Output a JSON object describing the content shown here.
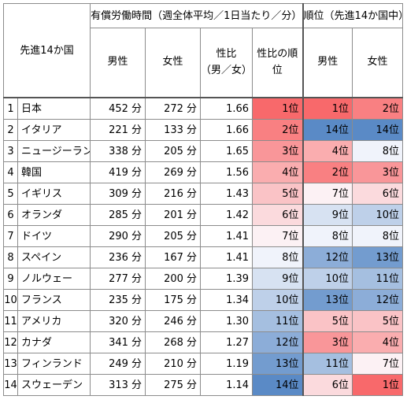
{
  "header": {
    "corner": "先進14か国",
    "group_work": "有償労働時間（週全体平均／1日当たり／分）",
    "group_rank": "順位（先進14か国中）",
    "col_male": "男性",
    "col_female": "女性",
    "col_ratio_l1": "性比",
    "col_ratio_l2": "（男／女）",
    "col_ratio_rank_l1": "性比の順",
    "col_ratio_rank_l2": "位",
    "col_rank_male": "男性",
    "col_rank_female": "女性"
  },
  "rows": [
    {
      "no": "1",
      "country": "日本",
      "male": "452 分",
      "female": "272 分",
      "ratio": "1.66",
      "ratio_rank": "1位",
      "rank_male": "1位",
      "rank_female": "2位",
      "rr": 1,
      "rm": 1,
      "rf": 2
    },
    {
      "no": "2",
      "country": "イタリア",
      "male": "221 分",
      "female": "133 分",
      "ratio": "1.66",
      "ratio_rank": "2位",
      "rank_male": "14位",
      "rank_female": "14位",
      "rr": 2,
      "rm": 14,
      "rf": 14
    },
    {
      "no": "3",
      "country": "ニュージーランド",
      "male": "338 分",
      "female": "205 分",
      "ratio": "1.65",
      "ratio_rank": "3位",
      "rank_male": "4位",
      "rank_female": "8位",
      "rr": 3,
      "rm": 4,
      "rf": 8
    },
    {
      "no": "4",
      "country": "韓国",
      "male": "419 分",
      "female": "269 分",
      "ratio": "1.56",
      "ratio_rank": "4位",
      "rank_male": "2位",
      "rank_female": "3位",
      "rr": 4,
      "rm": 2,
      "rf": 3
    },
    {
      "no": "5",
      "country": "イギリス",
      "male": "309 分",
      "female": "216 分",
      "ratio": "1.43",
      "ratio_rank": "5位",
      "rank_male": "7位",
      "rank_female": "6位",
      "rr": 5,
      "rm": 7,
      "rf": 6
    },
    {
      "no": "6",
      "country": "オランダ",
      "male": "285 分",
      "female": "201 分",
      "ratio": "1.42",
      "ratio_rank": "6位",
      "rank_male": "9位",
      "rank_female": "10位",
      "rr": 6,
      "rm": 9,
      "rf": 10
    },
    {
      "no": "7",
      "country": "ドイツ",
      "male": "290 分",
      "female": "205 分",
      "ratio": "1.41",
      "ratio_rank": "7位",
      "rank_male": "8位",
      "rank_female": "8位",
      "rr": 7,
      "rm": 8,
      "rf": 8
    },
    {
      "no": "8",
      "country": "スペイン",
      "male": "236 分",
      "female": "167 分",
      "ratio": "1.41",
      "ratio_rank": "8位",
      "rank_male": "12位",
      "rank_female": "13位",
      "rr": 8,
      "rm": 12,
      "rf": 13
    },
    {
      "no": "9",
      "country": "ノルウェー",
      "male": "277 分",
      "female": "200 分",
      "ratio": "1.39",
      "ratio_rank": "9位",
      "rank_male": "10位",
      "rank_female": "11位",
      "rr": 9,
      "rm": 10,
      "rf": 11
    },
    {
      "no": "10",
      "country": "フランス",
      "male": "235 分",
      "female": "175 分",
      "ratio": "1.34",
      "ratio_rank": "10位",
      "rank_male": "13位",
      "rank_female": "12位",
      "rr": 10,
      "rm": 13,
      "rf": 12
    },
    {
      "no": "11",
      "country": "アメリカ",
      "male": "320 分",
      "female": "246 分",
      "ratio": "1.30",
      "ratio_rank": "11位",
      "rank_male": "5位",
      "rank_female": "5位",
      "rr": 11,
      "rm": 5,
      "rf": 5
    },
    {
      "no": "12",
      "country": "カナダ",
      "male": "341 分",
      "female": "268 分",
      "ratio": "1.27",
      "ratio_rank": "12位",
      "rank_male": "3位",
      "rank_female": "4位",
      "rr": 12,
      "rm": 3,
      "rf": 4
    },
    {
      "no": "13",
      "country": "フィンランド",
      "male": "249 分",
      "female": "210 分",
      "ratio": "1.19",
      "ratio_rank": "13位",
      "rank_male": "11位",
      "rank_female": "7位",
      "rr": 13,
      "rm": 11,
      "rf": 7
    },
    {
      "no": "14",
      "country": "スウェーデン",
      "male": "313 分",
      "female": "275 分",
      "ratio": "1.14",
      "ratio_rank": "14位",
      "rank_male": "6位",
      "rank_female": "1位",
      "rr": 14,
      "rm": 6,
      "rf": 1
    }
  ],
  "colors": {
    "high": "#f8696b",
    "mid": "#fcfcff",
    "low": "#5a8ac6"
  }
}
